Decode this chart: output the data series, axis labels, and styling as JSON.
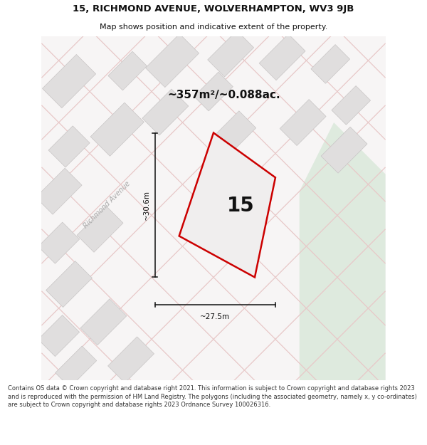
{
  "title_line1": "15, RICHMOND AVENUE, WOLVERHAMPTON, WV3 9JB",
  "title_line2": "Map shows position and indicative extent of the property.",
  "area_text": "~357m²/~0.088ac.",
  "house_number": "15",
  "dim_height": "~30.6m",
  "dim_width": "~27.5m",
  "street_name": "Richmond Avenue",
  "footer_text": "Contains OS data © Crown copyright and database right 2021. This information is subject to Crown copyright and database rights 2023 and is reproduced with the permission of HM Land Registry. The polygons (including the associated geometry, namely x, y co-ordinates) are subject to Crown copyright and database rights 2023 Ordnance Survey 100026316.",
  "map_bg": "#f7f5f5",
  "building_color": "#e0dede",
  "building_edge": "#c8c5c5",
  "road_line_color": "#e8c8c8",
  "plot_outline_color": "#cc0000",
  "plot_fill_color": "#f0eeee",
  "green_area_color": "#deeade",
  "dim_line_color": "#111111",
  "title_color": "#111111",
  "footer_color": "#333333",
  "street_label_color": "#aaaaaa",
  "white": "#ffffff"
}
